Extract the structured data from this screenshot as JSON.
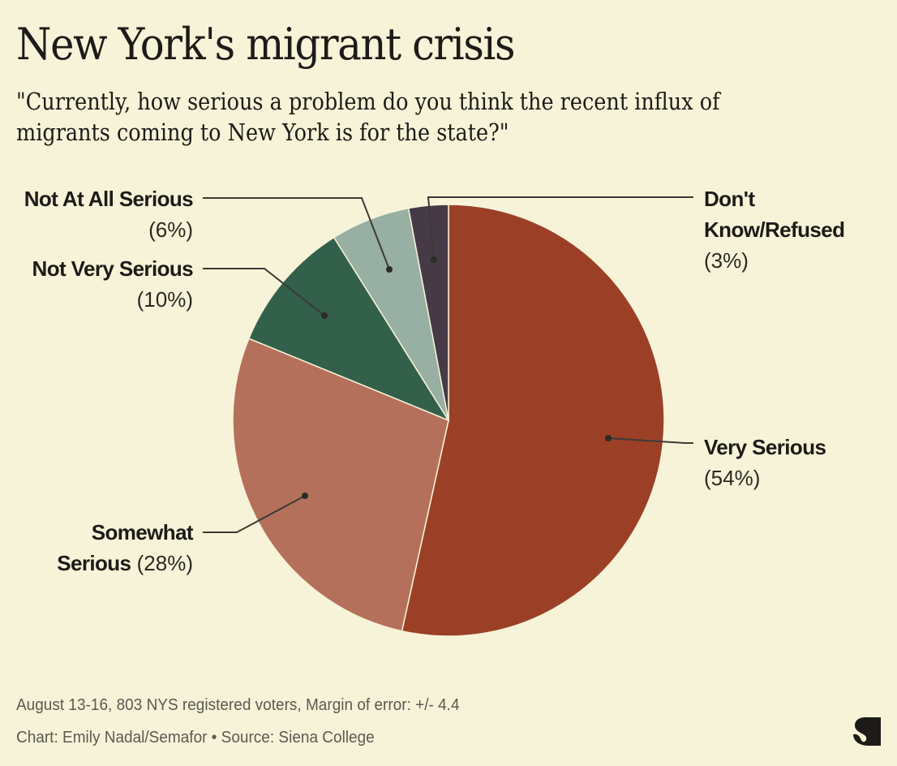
{
  "header": {
    "title": "New York's migrant crisis",
    "subtitle": "\"Currently, how serious a problem do you think the recent influx of migrants coming to New York is for the state?\""
  },
  "chart_data": {
    "type": "pie",
    "title": "New York's migrant crisis",
    "subtitle": "\"Currently, how serious a problem do you think the recent influx of migrants coming to New York is for the state?\"",
    "start": "top, clockwise",
    "slices": [
      {
        "label": "Very Serious",
        "value": 54,
        "value_label": "(54%)",
        "color": "#9b4027"
      },
      {
        "label": "Somewhat Serious",
        "value": 28,
        "value_label": "(28%)",
        "color": "#b5705b"
      },
      {
        "label": "Not Very Serious",
        "value": 10,
        "value_label": "(10%)",
        "color": "#33604b"
      },
      {
        "label": "Not At All Serious",
        "value": 6,
        "value_label": "(6%)",
        "color": "#98afa3"
      },
      {
        "label": "Don't Know/Refused",
        "value": 3,
        "value_label": "(3%)",
        "color": "#463a47"
      }
    ],
    "labels": {
      "very_serious": {
        "name": "Very Serious",
        "pct": "(54%)"
      },
      "somewhat_serious": {
        "name_line1": "Somewhat",
        "name_line2": "Serious",
        "pct": "(28%)"
      },
      "not_very_serious": {
        "name": "Not Very Serious",
        "pct": "(10%)"
      },
      "not_at_all_serious": {
        "name": "Not At All Serious",
        "pct": "(6%)"
      },
      "dont_know": {
        "name_line1": "Don't",
        "name_line2": "Know/Refused",
        "pct": "(3%)"
      }
    }
  },
  "footer": {
    "note": "August 13-16, 803 NYS registered voters, Margin of error: +/- 4.4",
    "credit": "Chart: Emily Nadal/Semafor • Source: Siena College"
  },
  "brand": {
    "logo": "semafor-logo-icon",
    "color": "#1c1b18"
  }
}
